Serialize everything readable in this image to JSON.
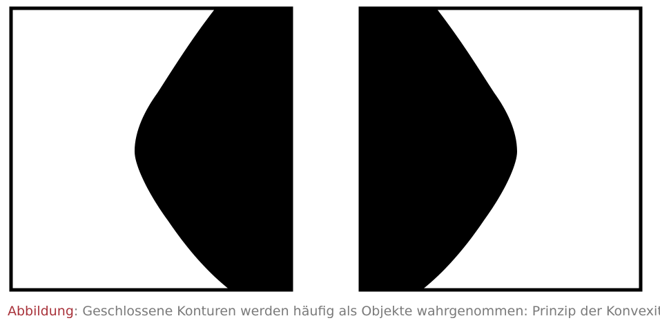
{
  "figure": {
    "panels": [
      {
        "name": "left-panel",
        "fill_side": "right"
      },
      {
        "name": "right-panel",
        "fill_side": "left"
      }
    ],
    "colors": {
      "frame": "#000000",
      "shape": "#000000",
      "background": "#ffffff"
    }
  },
  "caption": {
    "label": "Abbildung",
    "separator": ":",
    "text": "Geschlossene Konturen werden häufig als Objekte wahrgenommen: Prinzip der Konvexität",
    "label_color": "#a8323a",
    "text_color": "#7a7a7a"
  }
}
